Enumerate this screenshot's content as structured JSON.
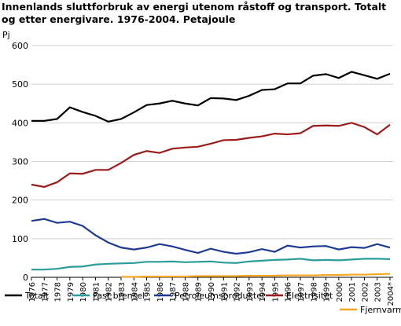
{
  "chart_data": {
    "type": "line",
    "title": "Innenlands sluttforbruk av energi utenom råstoff og transport. Totalt og etter energivare. 1976-2004. Petajoule",
    "y_label": "Pj",
    "categories": [
      "1976",
      "1977",
      "1978",
      "1979",
      "1980",
      "1981",
      "1982",
      "1983",
      "1984",
      "1985",
      "1986",
      "1987",
      "1988",
      "1989",
      "1990",
      "1991",
      "1992",
      "1993",
      "1994",
      "1995",
      "1996",
      "1997",
      "1998",
      "1999",
      "2000",
      "2001",
      "2002",
      "2003",
      "2004*"
    ],
    "series": [
      {
        "name": "Totalt",
        "color": "#000000",
        "values": [
          405,
          405,
          410,
          440,
          428,
          418,
          403,
          410,
          427,
          446,
          450,
          457,
          450,
          445,
          464,
          463,
          459,
          470,
          485,
          487,
          502,
          502,
          522,
          526,
          516,
          532,
          523,
          514,
          527
        ]
      },
      {
        "name": "Fast brensel",
        "color": "#2a9d9a",
        "values": [
          20,
          20,
          22,
          27,
          28,
          33,
          35,
          36,
          37,
          40,
          40,
          41,
          39,
          40,
          41,
          38,
          37,
          41,
          43,
          45,
          46,
          48,
          44,
          45,
          44,
          46,
          48,
          48,
          47
        ]
      },
      {
        "name": "Petroleumsprodukter",
        "color": "#1f3a93",
        "values": [
          146,
          151,
          141,
          144,
          133,
          109,
          90,
          77,
          72,
          77,
          86,
          80,
          71,
          63,
          74,
          66,
          61,
          65,
          73,
          66,
          82,
          77,
          80,
          81,
          72,
          78,
          76,
          86,
          77
        ]
      },
      {
        "name": "Elektrisitet",
        "color": "#9b1b1b",
        "values": [
          240,
          234,
          246,
          269,
          268,
          278,
          278,
          296,
          317,
          327,
          322,
          333,
          336,
          338,
          346,
          355,
          356,
          361,
          365,
          372,
          370,
          373,
          392,
          393,
          392,
          400,
          389,
          370,
          395
        ]
      },
      {
        "name": "Fjernvarme",
        "color": "#f5a623",
        "values": [
          null,
          null,
          null,
          null,
          null,
          null,
          null,
          1,
          1,
          2,
          2,
          2,
          2,
          3,
          3,
          3,
          3,
          4,
          4,
          4,
          5,
          5,
          5,
          6,
          6,
          7,
          7,
          8,
          9
        ]
      }
    ],
    "ylim": [
      0,
      600
    ],
    "yticks": [
      0,
      100,
      200,
      300,
      400,
      500,
      600
    ],
    "grid": true
  }
}
